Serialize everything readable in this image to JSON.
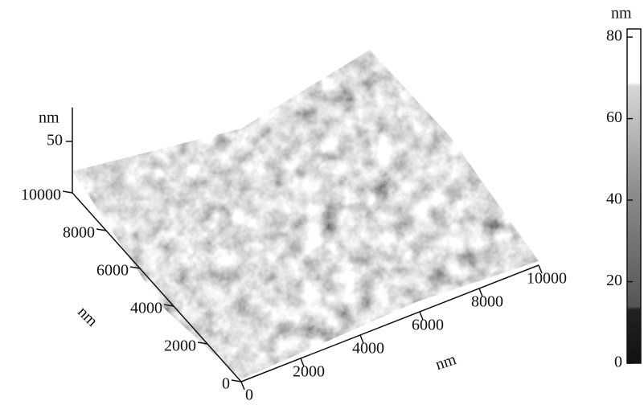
{
  "chart_data": {
    "type": "surface3d",
    "x_label": "nm",
    "y_label": "nm",
    "z_label": "nm",
    "colorbar_label": "nm",
    "xlim": [
      0,
      10000
    ],
    "xticks": [
      0,
      2000,
      4000,
      6000,
      8000,
      10000
    ],
    "ylim": [
      0,
      10000
    ],
    "yticks": [
      0,
      2000,
      4000,
      6000,
      8000,
      10000
    ],
    "zlim": [
      0,
      83
    ],
    "zticks": [
      50
    ],
    "clim": [
      0,
      82
    ],
    "cticks": [
      0,
      20,
      40,
      60,
      80
    ]
  }
}
